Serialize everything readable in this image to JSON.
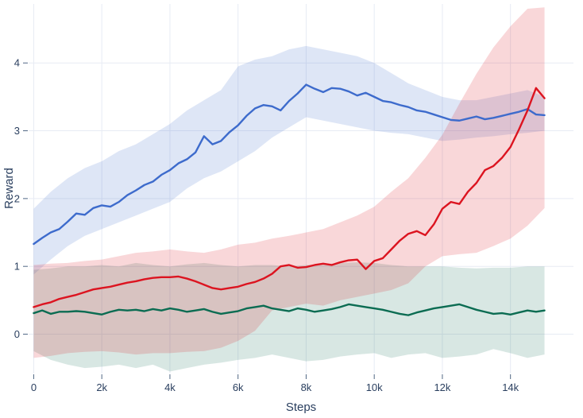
{
  "window": {
    "background": "#ffffff"
  },
  "chart_data": {
    "type": "line",
    "title": "",
    "xlabel": "Steps",
    "ylabel": "Reward",
    "xlim": [
      -150,
      15850
    ],
    "ylim": [
      -0.58,
      4.87
    ],
    "grid": true,
    "legend": "none",
    "x_tick_values": [
      0,
      2000,
      4000,
      6000,
      8000,
      10000,
      12000,
      14000
    ],
    "x_tick_labels": [
      "0",
      "2k",
      "4k",
      "6k",
      "8k",
      "10k",
      "12k",
      "14k"
    ],
    "y_tick_values": [
      0,
      1,
      2,
      3,
      4
    ],
    "y_tick_labels": [
      "0",
      "1",
      "2",
      "3",
      "4"
    ],
    "colors": {
      "text": "#2a3f5f",
      "grid": "#e7ebf4",
      "tick": "#506784",
      "background": "#ffffff",
      "blue_line": "#3d6bcc",
      "red_line": "#dc1420",
      "green_line": "#0b6c52"
    },
    "series": [
      {
        "name": "blue",
        "color": "#3d6bcc",
        "band_opacity": 0.17,
        "x": [
          0,
          250,
          500,
          750,
          1000,
          1250,
          1500,
          1750,
          2000,
          2250,
          2500,
          2750,
          3000,
          3250,
          3500,
          3750,
          4000,
          4250,
          4500,
          4750,
          5000,
          5250,
          5500,
          5750,
          6000,
          6250,
          6500,
          6750,
          7000,
          7250,
          7500,
          7750,
          8000,
          8250,
          8500,
          8750,
          9000,
          9250,
          9500,
          9750,
          10000,
          10250,
          10500,
          10750,
          11000,
          11250,
          11500,
          11750,
          12000,
          12250,
          12500,
          12750,
          13000,
          13250,
          13500,
          13750,
          14000,
          14250,
          14500,
          14750,
          15000
        ],
        "y": [
          1.33,
          1.42,
          1.5,
          1.55,
          1.66,
          1.78,
          1.76,
          1.86,
          1.9,
          1.88,
          1.95,
          2.05,
          2.12,
          2.2,
          2.25,
          2.35,
          2.42,
          2.52,
          2.58,
          2.68,
          2.92,
          2.8,
          2.85,
          2.98,
          3.08,
          3.22,
          3.33,
          3.38,
          3.36,
          3.3,
          3.44,
          3.55,
          3.68,
          3.62,
          3.57,
          3.63,
          3.62,
          3.58,
          3.52,
          3.56,
          3.5,
          3.44,
          3.42,
          3.38,
          3.35,
          3.3,
          3.28,
          3.24,
          3.2,
          3.16,
          3.15,
          3.18,
          3.21,
          3.17,
          3.19,
          3.22,
          3.25,
          3.28,
          3.32,
          3.24,
          3.23
        ],
        "band_x": [
          0,
          500,
          1000,
          1500,
          2000,
          2500,
          3000,
          3500,
          4000,
          4500,
          5000,
          5500,
          6000,
          6500,
          7000,
          7500,
          8000,
          8500,
          9000,
          9500,
          10000,
          10500,
          11000,
          11500,
          12000,
          12500,
          13000,
          13500,
          14000,
          14500,
          15000
        ],
        "band_upper": [
          1.85,
          2.1,
          2.3,
          2.45,
          2.55,
          2.7,
          2.8,
          2.95,
          3.1,
          3.3,
          3.45,
          3.6,
          3.95,
          4.05,
          4.1,
          4.2,
          4.25,
          4.2,
          4.15,
          4.1,
          4.0,
          3.85,
          3.7,
          3.6,
          3.5,
          3.45,
          3.45,
          3.5,
          3.55,
          3.6,
          3.5
        ],
        "band_lower": [
          0.88,
          1.1,
          1.3,
          1.45,
          1.55,
          1.65,
          1.75,
          1.85,
          1.95,
          2.15,
          2.3,
          2.4,
          2.55,
          2.7,
          2.9,
          3.05,
          3.2,
          3.15,
          3.1,
          3.05,
          3.0,
          2.97,
          2.95,
          2.9,
          2.85,
          2.87,
          2.9,
          2.92,
          2.95,
          2.97,
          3.0
        ]
      },
      {
        "name": "green",
        "color": "#0b6c52",
        "band_opacity": 0.16,
        "x": [
          0,
          250,
          500,
          750,
          1000,
          1250,
          1500,
          1750,
          2000,
          2250,
          2500,
          2750,
          3000,
          3250,
          3500,
          3750,
          4000,
          4250,
          4500,
          4750,
          5000,
          5250,
          5500,
          5750,
          6000,
          6250,
          6500,
          6750,
          7000,
          7250,
          7500,
          7750,
          8000,
          8250,
          8500,
          8750,
          9000,
          9250,
          9500,
          9750,
          10000,
          10250,
          10500,
          10750,
          11000,
          11250,
          11500,
          11750,
          12000,
          12250,
          12500,
          12750,
          13000,
          13250,
          13500,
          13750,
          14000,
          14250,
          14500,
          14750,
          15000
        ],
        "y": [
          0.31,
          0.35,
          0.3,
          0.33,
          0.33,
          0.34,
          0.33,
          0.31,
          0.29,
          0.33,
          0.36,
          0.35,
          0.36,
          0.34,
          0.37,
          0.35,
          0.38,
          0.36,
          0.33,
          0.35,
          0.37,
          0.33,
          0.3,
          0.32,
          0.34,
          0.38,
          0.4,
          0.42,
          0.38,
          0.36,
          0.34,
          0.38,
          0.36,
          0.33,
          0.35,
          0.37,
          0.4,
          0.44,
          0.42,
          0.4,
          0.38,
          0.36,
          0.33,
          0.3,
          0.28,
          0.32,
          0.35,
          0.38,
          0.4,
          0.42,
          0.44,
          0.4,
          0.36,
          0.33,
          0.3,
          0.31,
          0.29,
          0.32,
          0.35,
          0.33,
          0.35
        ],
        "band_x": [
          0,
          500,
          1000,
          1500,
          2000,
          2500,
          3000,
          3500,
          4000,
          4500,
          5000,
          5500,
          6000,
          6500,
          7000,
          7500,
          8000,
          8500,
          9000,
          9500,
          10000,
          10500,
          11000,
          11500,
          12000,
          12500,
          13000,
          13500,
          14000,
          14500,
          15000
        ],
        "band_upper": [
          0.95,
          0.97,
          1.0,
          1.0,
          1.02,
          1.0,
          1.05,
          1.02,
          1.0,
          1.03,
          1.05,
          1.02,
          1.0,
          1.02,
          1.02,
          1.0,
          1.02,
          1.03,
          1.05,
          1.06,
          1.05,
          1.02,
          1.0,
          1.0,
          1.0,
          0.98,
          0.97,
          0.98,
          0.98,
          1.0,
          1.0
        ],
        "band_lower": [
          -0.25,
          -0.38,
          -0.45,
          -0.5,
          -0.48,
          -0.45,
          -0.5,
          -0.45,
          -0.55,
          -0.5,
          -0.45,
          -0.42,
          -0.38,
          -0.35,
          -0.3,
          -0.35,
          -0.4,
          -0.38,
          -0.33,
          -0.3,
          -0.28,
          -0.35,
          -0.3,
          -0.28,
          -0.35,
          -0.33,
          -0.3,
          -0.22,
          -0.28,
          -0.35,
          -0.3
        ]
      },
      {
        "name": "red",
        "color": "#dc1420",
        "band_opacity": 0.17,
        "x": [
          0,
          250,
          500,
          750,
          1000,
          1250,
          1500,
          1750,
          2000,
          2250,
          2500,
          2750,
          3000,
          3250,
          3500,
          3750,
          4000,
          4250,
          4500,
          4750,
          5000,
          5250,
          5500,
          5750,
          6000,
          6250,
          6500,
          6750,
          7000,
          7250,
          7500,
          7750,
          8000,
          8250,
          8500,
          8750,
          9000,
          9250,
          9500,
          9750,
          10000,
          10250,
          10500,
          10750,
          11000,
          11250,
          11500,
          11750,
          12000,
          12250,
          12500,
          12750,
          13000,
          13250,
          13500,
          13750,
          14000,
          14250,
          14500,
          14750,
          15000
        ],
        "y": [
          0.4,
          0.44,
          0.47,
          0.52,
          0.55,
          0.58,
          0.62,
          0.66,
          0.68,
          0.7,
          0.73,
          0.76,
          0.78,
          0.81,
          0.83,
          0.84,
          0.84,
          0.85,
          0.82,
          0.78,
          0.73,
          0.68,
          0.66,
          0.68,
          0.7,
          0.74,
          0.77,
          0.82,
          0.89,
          1.0,
          1.02,
          0.98,
          0.99,
          1.02,
          1.04,
          1.02,
          1.06,
          1.09,
          1.1,
          0.96,
          1.08,
          1.12,
          1.25,
          1.38,
          1.48,
          1.52,
          1.46,
          1.62,
          1.85,
          1.95,
          1.92,
          2.1,
          2.23,
          2.42,
          2.48,
          2.6,
          2.76,
          3.02,
          3.3,
          3.63,
          3.48
        ],
        "band_x": [
          0,
          500,
          1000,
          1500,
          2000,
          2500,
          3000,
          3500,
          4000,
          4500,
          5000,
          5500,
          6000,
          6500,
          7000,
          7500,
          8000,
          8500,
          9000,
          9500,
          10000,
          10500,
          11000,
          11500,
          12000,
          12500,
          13000,
          13500,
          14000,
          14500,
          15000
        ],
        "band_upper": [
          1.02,
          1.04,
          1.05,
          1.08,
          1.1,
          1.15,
          1.2,
          1.22,
          1.25,
          1.22,
          1.2,
          1.25,
          1.32,
          1.35,
          1.41,
          1.45,
          1.5,
          1.55,
          1.65,
          1.75,
          1.88,
          2.1,
          2.3,
          2.6,
          2.94,
          3.4,
          3.84,
          4.23,
          4.54,
          4.8,
          4.82
        ],
        "band_lower": [
          -0.35,
          -0.32,
          -0.28,
          -0.26,
          -0.25,
          -0.27,
          -0.3,
          -0.28,
          -0.28,
          -0.26,
          -0.25,
          -0.2,
          -0.1,
          0.05,
          0.35,
          0.4,
          0.45,
          0.42,
          0.5,
          0.55,
          0.6,
          0.65,
          0.75,
          1.0,
          1.15,
          1.18,
          1.2,
          1.3,
          1.41,
          1.6,
          1.86
        ]
      }
    ]
  }
}
